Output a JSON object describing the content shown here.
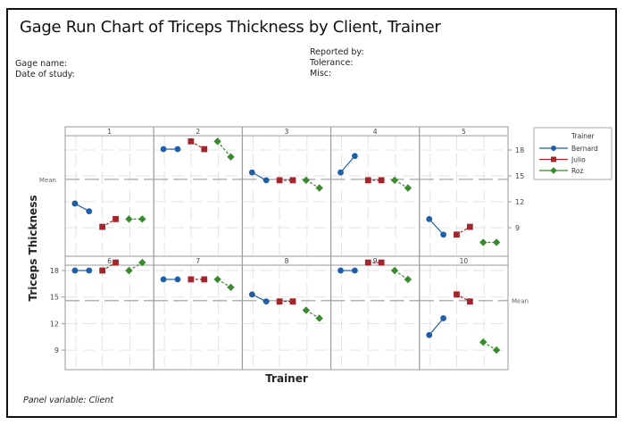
{
  "header": {
    "title": "Gage Run Chart of Triceps Thickness by Client, Trainer",
    "gage_name_label": "Gage name:",
    "date_label": "Date of study:",
    "reported_by_label": "Reported by:",
    "tolerance_label": "Tolerance:",
    "misc_label": "Misc:"
  },
  "footer": {
    "panel_variable": "Panel variable: Client"
  },
  "chart_data": {
    "type": "line",
    "title": "Gage Run Chart of Triceps Thickness by Client, Trainer",
    "xlabel": "Trainer",
    "ylabel": "Triceps Thickness",
    "panel_variable": "Client",
    "mean_label": "Mean",
    "mean": 14.6,
    "yticks": [
      9,
      12,
      15,
      18
    ],
    "ylim": [
      6.3,
      19.8
    ],
    "grid": true,
    "legend": {
      "title": "Trainer",
      "position": "right",
      "entries": [
        {
          "name": "Bernard",
          "color": "#1f5fa8",
          "marker": "circle",
          "line": "solid"
        },
        {
          "name": "Julio",
          "color": "#a4262c",
          "marker": "square",
          "line": "dashed"
        },
        {
          "name": "Roz",
          "color": "#3a8a2e",
          "marker": "diamond",
          "line": "dashed"
        }
      ]
    },
    "panels": [
      {
        "client": "1",
        "Bernard": [
          11.8,
          10.9
        ],
        "Julio": [
          9.1,
          10.0
        ],
        "Roz": [
          10.0,
          10.0
        ]
      },
      {
        "client": "2",
        "Bernard": [
          18.1,
          18.1
        ],
        "Julio": [
          19.0,
          18.1
        ],
        "Roz": [
          19.0,
          17.2
        ]
      },
      {
        "client": "3",
        "Bernard": [
          15.4,
          14.5
        ],
        "Julio": [
          14.5,
          14.5
        ],
        "Roz": [
          14.5,
          13.6
        ]
      },
      {
        "client": "4",
        "Bernard": [
          15.4,
          17.3
        ],
        "Julio": [
          14.5,
          14.5
        ],
        "Roz": [
          14.5,
          13.6
        ]
      },
      {
        "client": "5",
        "Bernard": [
          10.0,
          8.2
        ],
        "Julio": [
          8.2,
          9.1
        ],
        "Roz": [
          7.3,
          7.3
        ]
      },
      {
        "client": "6",
        "Bernard": [
          18.0,
          18.0
        ],
        "Julio": [
          18.0,
          18.9
        ],
        "Roz": [
          18.0,
          18.9
        ]
      },
      {
        "client": "7",
        "Bernard": [
          17.0,
          17.0
        ],
        "Julio": [
          17.0,
          17.0
        ],
        "Roz": [
          17.0,
          16.1
        ]
      },
      {
        "client": "8",
        "Bernard": [
          15.3,
          14.5
        ],
        "Julio": [
          14.5,
          14.5
        ],
        "Roz": [
          13.5,
          12.6
        ]
      },
      {
        "client": "9",
        "Bernard": [
          18.0,
          18.0
        ],
        "Julio": [
          18.9,
          18.9
        ],
        "Roz": [
          18.0,
          17.0
        ]
      },
      {
        "client": "10",
        "Bernard": [
          10.7,
          12.6
        ],
        "Julio": [
          15.3,
          14.5
        ],
        "Roz": [
          9.9,
          9.0
        ]
      }
    ]
  }
}
